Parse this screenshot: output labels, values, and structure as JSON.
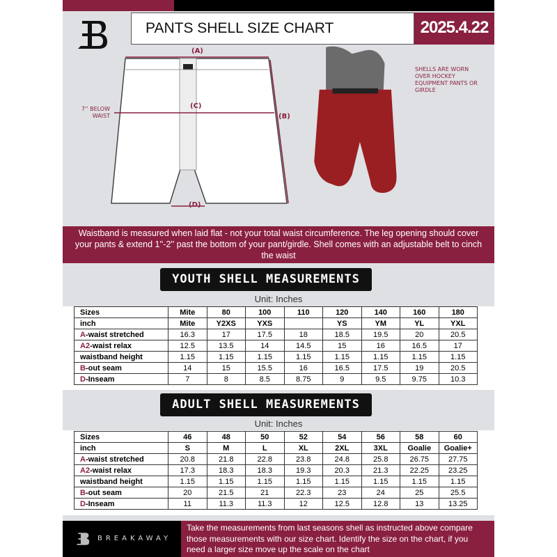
{
  "header": {
    "title": "PANTS SHELL SIZE CHART",
    "date": "2025.4.22"
  },
  "diagram": {
    "label_a": "(A)",
    "label_b": "(B)",
    "label_c": "(C)",
    "label_d": "(D)",
    "below_waist": "7'' BELOW WAIST",
    "photo_note": "SHELLS ARE WORN OVER HOCKEY EQUIPMENT PANTS OR GIRDLE"
  },
  "banner": "Waistband is measured when laid flat - not your total waist circumference. The leg opening should cover your pants & extend 1''-2'' past the bottom of your pant/girdle. Shell comes with an adjustable belt to cinch the waist",
  "colors": {
    "accent": "#8a2040",
    "dark": "#000000",
    "background": "#dfe0e3"
  },
  "youth": {
    "title": "YOUTH SHELL MEASUREMENTS",
    "unit": "Unit: Inches",
    "rows": [
      {
        "prefix": "",
        "label": "Sizes",
        "values": [
          "Mite",
          "80",
          "100",
          "110",
          "120",
          "140",
          "160",
          "180"
        ]
      },
      {
        "prefix": "",
        "label": "inch",
        "values": [
          "Mite",
          "Y2XS",
          "YXS",
          "",
          "YS",
          "YM",
          "YL",
          "YXL"
        ]
      },
      {
        "prefix": "A",
        "label": "-waist stretched",
        "values": [
          "16.3",
          "17",
          "17.5",
          "18",
          "18.5",
          "19.5",
          "20",
          "20.5"
        ]
      },
      {
        "prefix": "A2",
        "label": "-waist relax",
        "values": [
          "12.5",
          "13.5",
          "14",
          "14.5",
          "15",
          "16",
          "16.5",
          "17"
        ]
      },
      {
        "prefix": "",
        "label": "waistband height",
        "values": [
          "1.15",
          "1.15",
          "1.15",
          "1.15",
          "1.15",
          "1.15",
          "1.15",
          "1.15"
        ]
      },
      {
        "prefix": "B",
        "label": "-out seam",
        "values": [
          "14",
          "15",
          "15.5",
          "16",
          "16.5",
          "17.5",
          "19",
          "20.5"
        ]
      },
      {
        "prefix": "D",
        "label": "-Inseam",
        "values": [
          "7",
          "8",
          "8.5",
          "8.75",
          "9",
          "9.5",
          "9.75",
          "10.3"
        ]
      }
    ]
  },
  "adult": {
    "title": "ADULT SHELL MEASUREMENTS",
    "unit": "Unit: Inches",
    "rows": [
      {
        "prefix": "",
        "label": "Sizes",
        "values": [
          "46",
          "48",
          "50",
          "52",
          "54",
          "56",
          "58",
          "60"
        ]
      },
      {
        "prefix": "",
        "label": "inch",
        "values": [
          "S",
          "M",
          "L",
          "XL",
          "2XL",
          "3XL",
          "Goalie",
          "Goalie+"
        ]
      },
      {
        "prefix": "A",
        "label": "-waist stretched",
        "values": [
          "20.8",
          "21.8",
          "22.8",
          "23.8",
          "24.8",
          "25.8",
          "26.75",
          "27.75"
        ]
      },
      {
        "prefix": "A2",
        "label": "-waist relax",
        "values": [
          "17.3",
          "18.3",
          "18.3",
          "19.3",
          "20.3",
          "21.3",
          "22.25",
          "23.25"
        ]
      },
      {
        "prefix": "",
        "label": "waistband height",
        "values": [
          "1.15",
          "1.15",
          "1.15",
          "1.15",
          "1.15",
          "1.15",
          "1.15",
          "1.15"
        ]
      },
      {
        "prefix": "B",
        "label": "-out seam",
        "values": [
          "20",
          "21.5",
          "21",
          "22.3",
          "23",
          "24",
          "25",
          "25.5"
        ]
      },
      {
        "prefix": "D",
        "label": "-Inseam",
        "values": [
          "11",
          "11.3",
          "11.3",
          "12",
          "12.5",
          "12.8",
          "13",
          "13.25"
        ]
      }
    ]
  },
  "footer": {
    "brand": "BREAKAWAY",
    "text": "Take the measurements from last seasons shell as instructed above compare those measurements  with our size chart. Identify the size on the chart, if you need a larger size move up the scale on the chart"
  }
}
